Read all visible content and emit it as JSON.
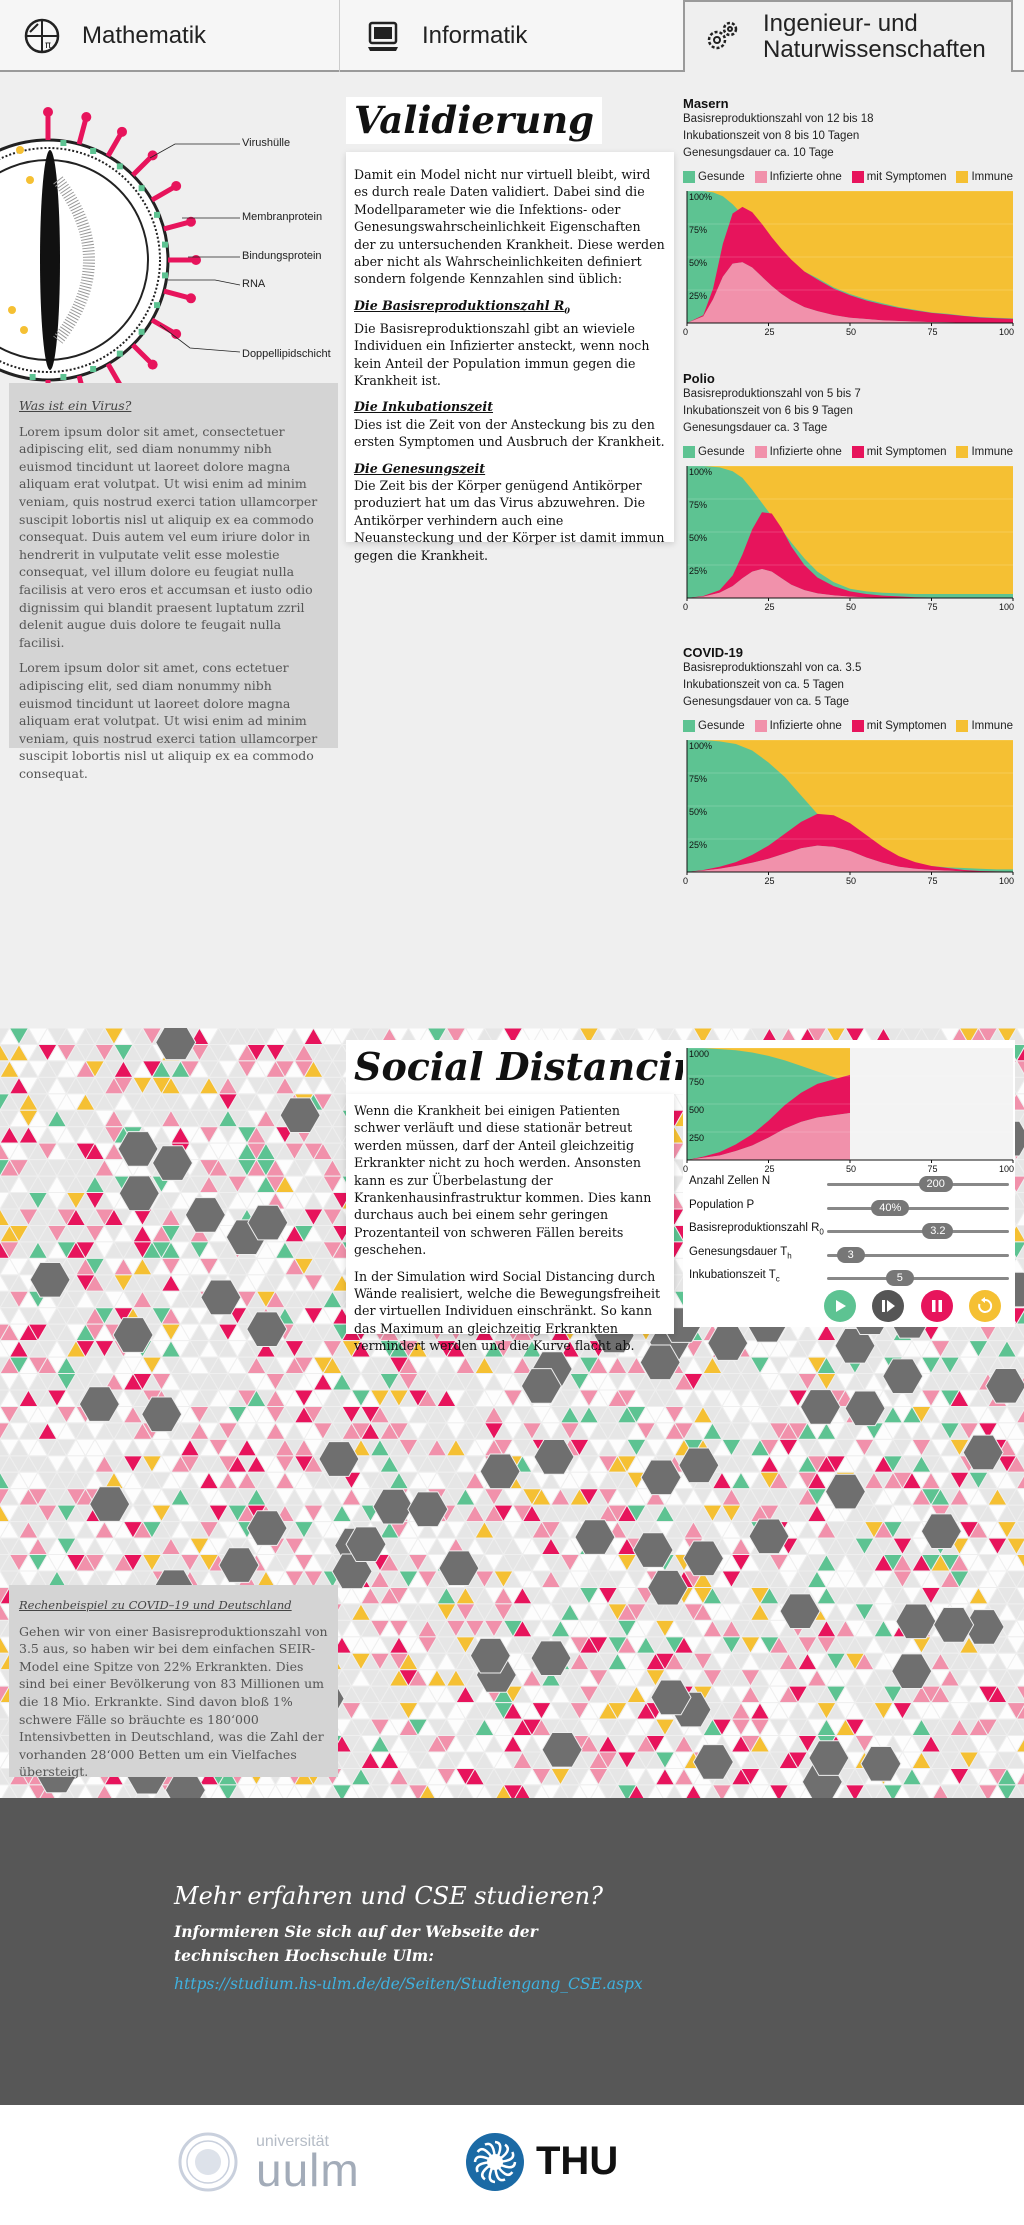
{
  "nav": {
    "tabs": [
      {
        "label": "Mathematik",
        "icon": "math-icon"
      },
      {
        "label": "Informatik",
        "icon": "computer-icon"
      },
      {
        "label_line1": "Ingenieur- und",
        "label_line2": "Naturwissenschaften",
        "icon": "gears-icon",
        "active": true
      }
    ]
  },
  "virus": {
    "labels": [
      "Virushülle",
      "Membranprotein",
      "Bindungsprotein",
      "RNA",
      "Doppellipidschicht"
    ]
  },
  "virus_box": {
    "heading": "Was ist ein Virus?",
    "p1": "Lorem ipsum dolor sit amet, consectetuer adipiscing elit, sed diam nonummy nibh euismod tincidunt ut laoreet dolore magna aliquam erat volutpat. Ut wisi enim ad minim veniam, quis nostrud exerci tation ullamcorper suscipit lobortis nisl ut aliquip ex ea commodo consequat. Duis autem vel eum iriure dolor in hendrerit in vulputate velit esse molestie consequat, vel illum dolore eu feugiat nulla facilisis at vero eros et accumsan et iusto odio dignissim qui blandit praesent luptatum zzril delenit augue duis dolore te feugait nulla facilisi.",
    "p2": "Lorem ipsum dolor sit amet, cons ectetuer adipiscing elit, sed diam nonummy nibh euismod tincidunt ut laoreet dolore magna aliquam erat volutpat. Ut wisi enim ad minim veniam, quis nostrud exerci tation ullamcorper suscipit lobortis nisl ut aliquip ex ea commodo consequat."
  },
  "validation": {
    "title": "Validierung",
    "intro": "Damit ein Model nicht nur virtuell bleibt, wird es durch reale Daten validiert. Dabei sind die Modellparameter wie die Infektions- oder Genesungswahrscheinlichkeit Eigenschaften der zu untersuchenden Krankheit. Diese werden aber nicht als Wahrscheinlichkeiten definiert sondern folgende Kennzahlen sind üblich:",
    "h1": "Die Basisreproduktionszahl R",
    "h1_sub": "0",
    "t1": "Die Basisreproduktionszahl gibt an wieviele Individuen ein Infizierter ansteckt, wenn noch kein Anteil der Population immun gegen die Krankheit ist.",
    "h2": "Die Inkubationszeit",
    "t2": "Dies ist die Zeit von der Ansteckung bis zu den ersten Symptomen und Ausbruch der Krankheit.",
    "h3": "Die Genesungszeit",
    "t3": "Die Zeit bis der Körper genügend Antikörper produziert hat um das Virus abzuwehren. Die Antikörper verhindern auch eine Neuansteckung und der Körper ist damit immun gegen die Krankheit."
  },
  "legend": [
    "Gesunde",
    "Infizierte ohne",
    "mit Symptomen",
    "Immune"
  ],
  "colors": {
    "healthy": "#5dc392",
    "infected": "#f191ab",
    "symptoms": "#e7145c",
    "immune": "#f5c033",
    "accent": "#3fb2e0"
  },
  "chart_data": [
    {
      "type": "area",
      "name": "Masern",
      "info": [
        "Basisreproduktionszahl von 12 bis 18",
        "Inkubationszeit von 8 bis 10 Tagen",
        "Genesungsdauer ca. 10 Tage"
      ],
      "x": [
        0,
        5,
        8,
        11,
        14,
        17,
        20,
        23,
        26,
        29,
        32,
        36,
        40,
        45,
        50,
        55,
        60,
        65,
        70,
        75,
        80,
        85,
        90,
        95,
        100
      ],
      "series": [
        {
          "name": "Infizierte ohne",
          "values": [
            0,
            5,
            18,
            35,
            45,
            46,
            42,
            35,
            28,
            22,
            17,
            12,
            9,
            6,
            4,
            3,
            2,
            1.5,
            1,
            0.7,
            0.5,
            0.3,
            0.2,
            0.1,
            0.1
          ]
        },
        {
          "name": "mit Symptomen",
          "values": [
            0,
            1,
            8,
            25,
            38,
            42,
            42,
            40,
            37,
            34,
            31,
            27,
            24,
            20,
            17,
            14,
            12,
            10,
            8.5,
            7,
            6,
            5,
            4,
            3.5,
            3
          ]
        },
        {
          "name": "Immune",
          "values": [
            0,
            0,
            1,
            4,
            10,
            18,
            26,
            34,
            42,
            48,
            54,
            61,
            66,
            73,
            78,
            82,
            85,
            88,
            90,
            92,
            93,
            94.5,
            95.5,
            96,
            96.5
          ]
        }
      ],
      "xlim": [
        0,
        100
      ],
      "ylim": [
        0,
        100
      ],
      "xticks": [
        "0",
        "25",
        "50",
        "75",
        "100"
      ],
      "yticks": [
        "100%",
        "75%",
        "50%",
        "25%"
      ]
    },
    {
      "type": "area",
      "name": "Polio",
      "info": [
        "Basisreproduktionszahl von 5 bis 7",
        "Inkubationszeit von 6 bis 9 Tagen",
        "Genesungsdauer ca. 3 Tage"
      ],
      "x": [
        0,
        5,
        10,
        14,
        17,
        20,
        23,
        26,
        29,
        32,
        36,
        40,
        45,
        50,
        55,
        60,
        65,
        70,
        75,
        80,
        85,
        90,
        95,
        100
      ],
      "series": [
        {
          "name": "Infizierte ohne",
          "values": [
            0,
            1,
            4,
            9,
            15,
            20,
            22,
            20,
            15,
            10,
            6,
            3.5,
            2,
            1,
            0.5,
            0.3,
            0.2,
            0.1,
            0.1,
            0,
            0,
            0,
            0,
            0
          ]
        },
        {
          "name": "mit Symptomen",
          "values": [
            0,
            0.5,
            2,
            8,
            18,
            32,
            43,
            44,
            38,
            29,
            19,
            12,
            7,
            4,
            2.5,
            1.5,
            1,
            0.5,
            0.3,
            0.2,
            0.1,
            0,
            0,
            0
          ]
        },
        {
          "name": "Immune",
          "values": [
            0,
            0,
            1,
            4,
            9,
            18,
            28,
            38,
            48,
            58,
            70,
            80,
            88,
            93,
            95,
            96,
            96.5,
            97,
            97,
            97,
            97,
            97,
            97,
            97
          ]
        }
      ],
      "xlim": [
        0,
        100
      ],
      "ylim": [
        0,
        100
      ],
      "xticks": [
        "0",
        "25",
        "50",
        "75",
        "100"
      ],
      "yticks": [
        "100%",
        "75%",
        "50%",
        "25%"
      ]
    },
    {
      "type": "area",
      "name": "COVID-19",
      "info": [
        "Basisreproduktionszahl von ca. 3.5",
        "Inkubationszeit von ca. 5 Tagen",
        "Genesungsdauer von ca. 5 Tage"
      ],
      "x": [
        0,
        5,
        10,
        15,
        20,
        25,
        30,
        35,
        40,
        45,
        50,
        55,
        60,
        65,
        70,
        75,
        80,
        85,
        90,
        95,
        100
      ],
      "series": [
        {
          "name": "Infizierte ohne",
          "values": [
            0,
            1,
            2.5,
            4.5,
            7,
            10,
            14,
            18,
            20,
            19,
            16,
            11,
            7,
            4,
            2.5,
            1.5,
            1,
            0.5,
            0.3,
            0.2,
            0.1
          ]
        },
        {
          "name": "mit Symptomen",
          "values": [
            0,
            0.5,
            1.5,
            3,
            6,
            10,
            15,
            20,
            24,
            24,
            21,
            17,
            12,
            8,
            5,
            3,
            2,
            1,
            0.5,
            0.3,
            0.2
          ]
        },
        {
          "name": "Immune",
          "values": [
            0,
            0,
            1,
            3,
            8,
            17,
            28,
            42,
            56,
            68,
            77,
            84,
            89,
            92,
            94,
            95.5,
            96.5,
            97,
            97.5,
            98,
            98
          ]
        }
      ],
      "xlim": [
        0,
        100
      ],
      "ylim": [
        0,
        100
      ],
      "xticks": [
        "0",
        "25",
        "50",
        "75",
        "100"
      ],
      "yticks": [
        "100%",
        "75%",
        "50%",
        "25%"
      ]
    },
    {
      "type": "area",
      "name": "Simulation",
      "x": [
        0,
        5,
        10,
        15,
        20,
        25,
        30,
        35,
        40,
        45,
        50
      ],
      "series": [
        {
          "name": "Infizierte ohne",
          "values": [
            0,
            2,
            4,
            8,
            13,
            20,
            28,
            34,
            38,
            40,
            42
          ]
        },
        {
          "name": "mit Symptomen",
          "values": [
            0,
            1,
            3,
            6,
            10,
            15,
            21,
            26,
            30,
            32,
            34
          ]
        },
        {
          "name": "Immune",
          "values": [
            0,
            0,
            1,
            2,
            4,
            7,
            11,
            16,
            21,
            26,
            30
          ]
        }
      ],
      "total": 1000,
      "xlim": [
        0,
        100
      ],
      "ylim": [
        0,
        1000
      ],
      "xticks": [
        "0",
        "25",
        "50",
        "75",
        "100"
      ],
      "yticks": [
        "1000",
        "750",
        "500",
        "250"
      ]
    }
  ],
  "social": {
    "title": "Social Distancing",
    "p1": "Wenn die Krankheit bei einigen Patienten schwer verläuft und diese stationär betreut werden müssen, darf der Anteil gleichzeitig Erkrankter nicht zu hoch werden. Ansonsten kann es zur Überbelastung der Krankenhausinfrastruktur kommen. Dies kann durchaus auch bei einem sehr geringen Prozentanteil von schweren Fällen bereits geschehen.",
    "p2": "In der Simulation wird Social Distancing durch Wände realisiert, welche die Bewegungsfreiheit der virtuellen Individuen einschränkt. So kann das Maximum an gleichzeitig Erkrankten vermindert werden und die Kurve flacht ab."
  },
  "sim": {
    "sliders": [
      {
        "label": "Anzahl Zellen N",
        "value": "200",
        "level": 0.58
      },
      {
        "label": "Population P",
        "value": "40%",
        "level": 0.32
      },
      {
        "label": "Basisreproduktionszahl R",
        "sub": "0",
        "value": "3.2",
        "level": 0.6
      },
      {
        "label": "Genesungsdauer T",
        "sub": "h",
        "value": "3",
        "level": 0.13
      },
      {
        "label": "Inkubationszeit T",
        "sub": "c",
        "value": "5",
        "level": 0.4
      }
    ],
    "buttons": [
      "play-icon",
      "step-icon",
      "pause-icon",
      "reset-icon"
    ]
  },
  "example": {
    "heading": "Rechenbeispiel zu COVID–19 und Deutschland",
    "text": "Gehen wir von einer Basisreproduktionszahl von 3.5 aus, so haben wir bei dem einfachen SEIR-Model eine Spitze von 22% Erkrankten. Dies sind bei einer Bevölkerung von 83 Millionen um die 18 Mio. Erkrankte. Sind davon bloß 1% schwere Fälle so bräuchte es 180‘000 Intensivbetten in Deutschland, was die Zahl der vorhanden 28‘000 Betten  um ein Vielfaches übersteigt."
  },
  "footer": {
    "heading": "Mehr erfahren und CSE studieren?",
    "line1": "Informieren Sie sich auf der Webseite der",
    "line2": "technischen Hochschule Ulm:",
    "link": "https://studium.hs-ulm.de/de/Seiten/Studiengang_CSE.aspx"
  },
  "logos": {
    "uulm_top": "universität",
    "uulm_bottom": "uulm",
    "thu": "THU"
  }
}
